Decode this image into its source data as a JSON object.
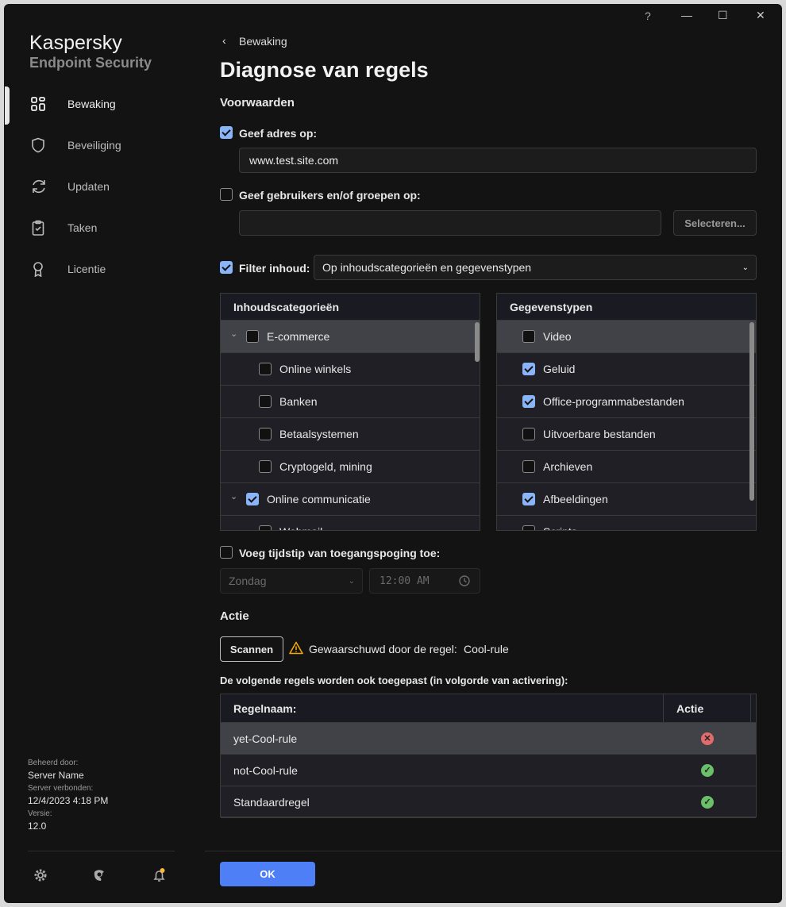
{
  "window": {
    "help": "?",
    "minimize": "—",
    "maximize": "☐",
    "close": "✕"
  },
  "brand": {
    "line1": "Kaspersky",
    "line2": "Endpoint Security"
  },
  "sidebar": {
    "items": [
      {
        "label": "Bewaking",
        "icon": "dashboard-icon",
        "active": true
      },
      {
        "label": "Beveiliging",
        "icon": "shield-icon"
      },
      {
        "label": "Updaten",
        "icon": "refresh-icon"
      },
      {
        "label": "Taken",
        "icon": "clipboard-icon"
      },
      {
        "label": "Licentie",
        "icon": "award-icon"
      }
    ],
    "managed_by_label": "Beheerd door:",
    "managed_by": "Server Name",
    "connected_label": "Server verbonden:",
    "connected": "12/4/2023 4:18 PM",
    "version_label": "Versie:",
    "version": "12.0"
  },
  "breadcrumb": "Bewaking",
  "title": "Diagnose van regels",
  "conditions": {
    "heading": "Voorwaarden",
    "address": {
      "label": "Geef adres op:",
      "checked": true,
      "value": "www.test.site.com"
    },
    "users": {
      "label": "Geef gebruikers en/of groepen op:",
      "checked": false,
      "value": "",
      "select_button": "Selecteren..."
    },
    "filter": {
      "label": "Filter inhoud:",
      "checked": true,
      "value": "Op inhoudscategorieën en gegevenstypen"
    },
    "categories": {
      "header": "Inhoudscategorieën",
      "items": [
        {
          "label": "E-commerce",
          "checked": false,
          "group": true,
          "selected": true
        },
        {
          "label": "Online winkels",
          "checked": false
        },
        {
          "label": "Banken",
          "checked": false
        },
        {
          "label": "Betaalsystemen",
          "checked": false
        },
        {
          "label": "Cryptogeld, mining",
          "checked": false
        },
        {
          "label": "Online communicatie",
          "checked": true,
          "group": true
        },
        {
          "label": "Webmail",
          "checked": false
        }
      ]
    },
    "datatypes": {
      "header": "Gegevenstypen",
      "items": [
        {
          "label": "Video",
          "checked": false,
          "selected": true
        },
        {
          "label": "Geluid",
          "checked": true
        },
        {
          "label": "Office-programmabestanden",
          "checked": true
        },
        {
          "label": "Uitvoerbare bestanden",
          "checked": false
        },
        {
          "label": "Archieven",
          "checked": false
        },
        {
          "label": "Afbeeldingen",
          "checked": true
        },
        {
          "label": "Scripts",
          "checked": false
        }
      ]
    },
    "time": {
      "label": "Voeg tijdstip van toegangspoging toe:",
      "checked": false,
      "day": "Zondag",
      "time": "12:00 AM"
    }
  },
  "action": {
    "heading": "Actie",
    "scan_button": "Scannen",
    "warned_label": "Gewaarschuwd door de regel:",
    "rule": "Cool-rule",
    "also_applied": "De volgende regels worden ook toegepast (in volgorde van activering):",
    "columns": [
      "Regelnaam:",
      "Actie"
    ],
    "rows": [
      {
        "name": "yet-Cool-rule",
        "action": "block"
      },
      {
        "name": "not-Cool-rule",
        "action": "allow"
      },
      {
        "name": "Standaardregel",
        "action": "allow"
      }
    ]
  },
  "ok_button": "OK",
  "colors": {
    "accent": "#4f7ff7",
    "checkbox": "#8ab4f8",
    "allow": "#6abf69",
    "block": "#e06c6c",
    "warning": "#f0a70a",
    "notification": "#f5b83d"
  }
}
